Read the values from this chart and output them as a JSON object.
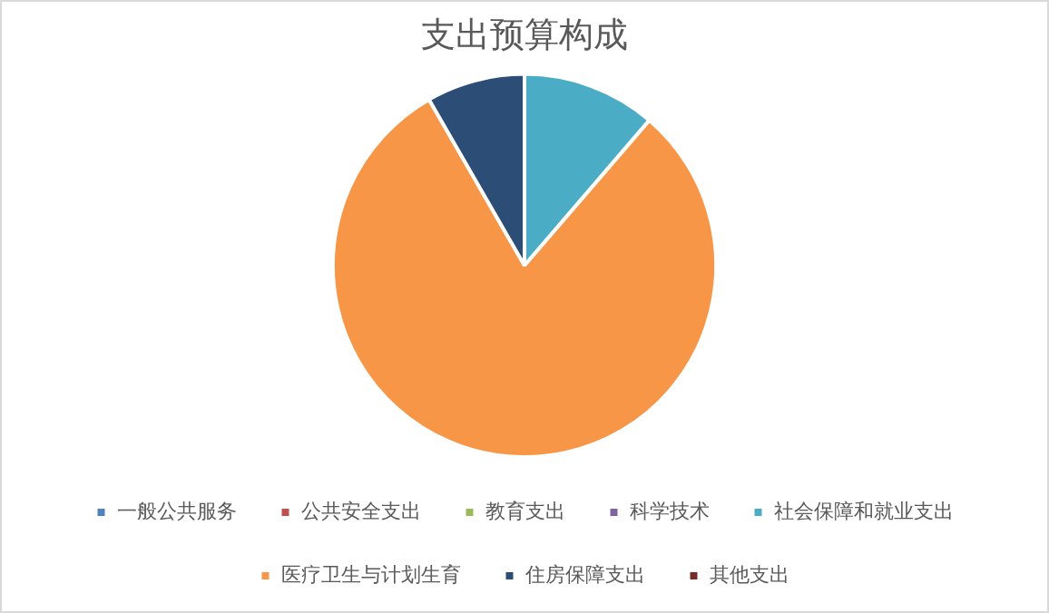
{
  "chart_data": {
    "type": "pie",
    "title": "支出预算构成",
    "categories": [
      "一般公共服务",
      "公共安全支出",
      "教育支出",
      "科学技术",
      "社会保障和就业支出",
      "医疗卫生与计划生育",
      "住房保障支出",
      "其他支出"
    ],
    "values": [
      0,
      0,
      0,
      0,
      11.3,
      80.4,
      8.3,
      0
    ],
    "colors": [
      "#4f81bd",
      "#c0504d",
      "#9bbb59",
      "#8064a2",
      "#4bacc6",
      "#f79646",
      "#2c4d75",
      "#772c2a"
    ],
    "legend": "bottom"
  }
}
